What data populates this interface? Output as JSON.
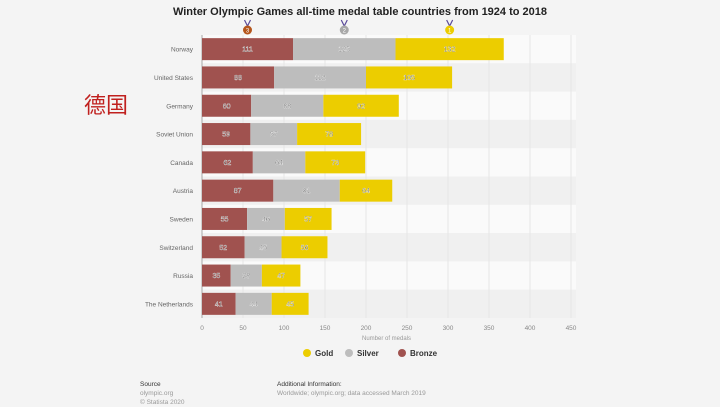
{
  "chart_data": {
    "type": "bar",
    "orientation": "horizontal",
    "stacked": true,
    "title": "Winter Olympic Games all-time medal table countries from 1924 to 2018",
    "xlabel": "Number of medals",
    "ylabel": "",
    "xlim": [
      0,
      450
    ],
    "xticks": [
      0,
      50,
      100,
      150,
      200,
      250,
      300,
      350,
      400,
      450
    ],
    "grid": true,
    "legend_position": "bottom",
    "categories": [
      "Norway",
      "United States",
      "Germany",
      "Soviet Union",
      "Canada",
      "Austria",
      "Sweden",
      "Switzerland",
      "Russia",
      "The Netherlands"
    ],
    "series": [
      {
        "name": "Bronze",
        "color": "#a0524f",
        "values": [
          111,
          88,
          60,
          59,
          62,
          87,
          55,
          52,
          35,
          41
        ]
      },
      {
        "name": "Silver",
        "color": "#bdbdbd",
        "values": [
          125,
          112,
          88,
          57,
          64,
          81,
          46,
          45,
          38,
          44
        ]
      },
      {
        "name": "Gold",
        "color": "#eccd00",
        "values": [
          132,
          105,
          92,
          78,
          73,
          64,
          57,
          56,
          47,
          45
        ]
      }
    ],
    "legend": [
      {
        "name": "Gold",
        "color": "#eccd00"
      },
      {
        "name": "Silver",
        "color": "#bdbdbd"
      },
      {
        "name": "Bronze",
        "color": "#a0524f"
      }
    ],
    "medal_icons": [
      {
        "name": "bronze-medal-icon",
        "label": "3",
        "color": "#b5561c"
      },
      {
        "name": "silver-medal-icon",
        "label": "2",
        "color": "#a8a8a8"
      },
      {
        "name": "gold-medal-icon",
        "label": "1",
        "color": "#eccd00"
      }
    ]
  },
  "annotation": {
    "text": "德国"
  },
  "footer": {
    "source_heading": "Source",
    "source_lines": [
      "olympic.org",
      "© Statista 2020"
    ],
    "info_heading": "Additional Information:",
    "info_text": "Worldwide; olympic.org; data accessed March 2019"
  }
}
